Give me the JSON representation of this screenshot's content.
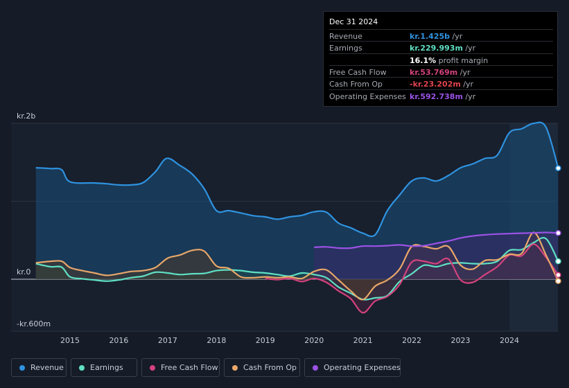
{
  "chart_data": {
    "type": "area",
    "y_axis_labels": [
      "kr.2b",
      "kr.0",
      "-kr.600m"
    ],
    "x_ticks": [
      2015,
      2016,
      2017,
      2018,
      2019,
      2020,
      2021,
      2022,
      2023,
      2024
    ],
    "ylim": [
      -600,
      2000
    ],
    "xlim": [
      2014.3,
      2025.0
    ],
    "forecast_start": 2024.0,
    "series": [
      {
        "name": "Revenue",
        "key": "revenue",
        "color": "#2f93e0",
        "fill": "#1a4f7a",
        "points": [
          [
            2014.3,
            1430
          ],
          [
            2014.6,
            1420
          ],
          [
            2014.83,
            1405
          ],
          [
            2015.0,
            1250
          ],
          [
            2015.5,
            1235
          ],
          [
            2015.75,
            1225
          ],
          [
            2016.0,
            1210
          ],
          [
            2016.25,
            1210
          ],
          [
            2016.5,
            1240
          ],
          [
            2016.75,
            1380
          ],
          [
            2016.98,
            1550
          ],
          [
            2017.25,
            1460
          ],
          [
            2017.5,
            1350
          ],
          [
            2017.75,
            1160
          ],
          [
            2018.0,
            880
          ],
          [
            2018.25,
            880
          ],
          [
            2018.5,
            850
          ],
          [
            2018.75,
            815
          ],
          [
            2019.0,
            800
          ],
          [
            2019.25,
            770
          ],
          [
            2019.5,
            800
          ],
          [
            2019.75,
            820
          ],
          [
            2020.0,
            865
          ],
          [
            2020.25,
            860
          ],
          [
            2020.5,
            720
          ],
          [
            2020.75,
            660
          ],
          [
            2021.0,
            590
          ],
          [
            2021.25,
            570
          ],
          [
            2021.5,
            880
          ],
          [
            2021.75,
            1080
          ],
          [
            2022.0,
            1260
          ],
          [
            2022.25,
            1300
          ],
          [
            2022.5,
            1260
          ],
          [
            2022.75,
            1330
          ],
          [
            2023.0,
            1430
          ],
          [
            2023.25,
            1480
          ],
          [
            2023.5,
            1550
          ],
          [
            2023.75,
            1590
          ],
          [
            2024.0,
            1880
          ],
          [
            2024.25,
            1930
          ],
          [
            2024.5,
            2000
          ],
          [
            2024.75,
            1950
          ],
          [
            2025.0,
            1425
          ]
        ]
      },
      {
        "name": "Earnings",
        "key": "earnings",
        "color": "#5fe0c3",
        "fill": "#1f4a4a",
        "points": [
          [
            2014.3,
            200
          ],
          [
            2014.6,
            160
          ],
          [
            2014.83,
            155
          ],
          [
            2015.0,
            30
          ],
          [
            2015.25,
            5
          ],
          [
            2015.5,
            -10
          ],
          [
            2015.75,
            -25
          ],
          [
            2016.0,
            -10
          ],
          [
            2016.25,
            20
          ],
          [
            2016.5,
            40
          ],
          [
            2016.75,
            90
          ],
          [
            2017.0,
            80
          ],
          [
            2017.25,
            60
          ],
          [
            2017.5,
            70
          ],
          [
            2017.75,
            75
          ],
          [
            2018.0,
            110
          ],
          [
            2018.25,
            120
          ],
          [
            2018.5,
            110
          ],
          [
            2018.75,
            90
          ],
          [
            2019.0,
            80
          ],
          [
            2019.25,
            60
          ],
          [
            2019.5,
            40
          ],
          [
            2019.75,
            80
          ],
          [
            2020.0,
            60
          ],
          [
            2020.25,
            20
          ],
          [
            2020.5,
            -100
          ],
          [
            2020.75,
            -180
          ],
          [
            2021.0,
            -260
          ],
          [
            2021.25,
            -240
          ],
          [
            2021.5,
            -210
          ],
          [
            2021.75,
            -30
          ],
          [
            2022.0,
            70
          ],
          [
            2022.25,
            180
          ],
          [
            2022.5,
            160
          ],
          [
            2022.75,
            200
          ],
          [
            2023.0,
            210
          ],
          [
            2023.25,
            200
          ],
          [
            2023.5,
            200
          ],
          [
            2023.75,
            230
          ],
          [
            2024.0,
            370
          ],
          [
            2024.25,
            380
          ],
          [
            2024.5,
            470
          ],
          [
            2024.75,
            520
          ],
          [
            2025.0,
            230
          ]
        ]
      },
      {
        "name": "Free Cash Flow",
        "key": "fcf",
        "color": "#d4437d",
        "fill": "#4a2340",
        "points": [
          [
            2019.0,
            10
          ],
          [
            2019.25,
            -5
          ],
          [
            2019.5,
            10
          ],
          [
            2019.75,
            -30
          ],
          [
            2020.0,
            10
          ],
          [
            2020.25,
            -40
          ],
          [
            2020.5,
            -150
          ],
          [
            2020.75,
            -250
          ],
          [
            2021.0,
            -430
          ],
          [
            2021.25,
            -280
          ],
          [
            2021.5,
            -220
          ],
          [
            2021.75,
            -70
          ],
          [
            2022.0,
            220
          ],
          [
            2022.25,
            230
          ],
          [
            2022.5,
            200
          ],
          [
            2022.75,
            260
          ],
          [
            2023.0,
            -10
          ],
          [
            2023.25,
            -40
          ],
          [
            2023.5,
            60
          ],
          [
            2023.75,
            160
          ],
          [
            2024.0,
            310
          ],
          [
            2024.25,
            300
          ],
          [
            2024.5,
            450
          ],
          [
            2024.75,
            280
          ],
          [
            2025.0,
            54
          ]
        ]
      },
      {
        "name": "Cash From Op",
        "key": "cfo",
        "color": "#e9a76a",
        "fill": "#4a3a2a",
        "points": [
          [
            2014.3,
            210
          ],
          [
            2014.6,
            230
          ],
          [
            2014.83,
            230
          ],
          [
            2015.0,
            150
          ],
          [
            2015.25,
            110
          ],
          [
            2015.5,
            80
          ],
          [
            2015.75,
            50
          ],
          [
            2016.0,
            70
          ],
          [
            2016.25,
            100
          ],
          [
            2016.5,
            110
          ],
          [
            2016.75,
            150
          ],
          [
            2017.0,
            270
          ],
          [
            2017.25,
            310
          ],
          [
            2017.5,
            370
          ],
          [
            2017.75,
            360
          ],
          [
            2018.0,
            170
          ],
          [
            2018.25,
            140
          ],
          [
            2018.5,
            30
          ],
          [
            2018.75,
            20
          ],
          [
            2019.0,
            30
          ],
          [
            2019.25,
            20
          ],
          [
            2019.5,
            30
          ],
          [
            2019.75,
            10
          ],
          [
            2020.0,
            100
          ],
          [
            2020.25,
            120
          ],
          [
            2020.5,
            -10
          ],
          [
            2020.75,
            -150
          ],
          [
            2021.0,
            -260
          ],
          [
            2021.25,
            -90
          ],
          [
            2021.5,
            -10
          ],
          [
            2021.75,
            130
          ],
          [
            2022.0,
            420
          ],
          [
            2022.25,
            420
          ],
          [
            2022.5,
            390
          ],
          [
            2022.75,
            420
          ],
          [
            2023.0,
            180
          ],
          [
            2023.25,
            130
          ],
          [
            2023.5,
            240
          ],
          [
            2023.75,
            250
          ],
          [
            2024.0,
            320
          ],
          [
            2024.25,
            330
          ],
          [
            2024.5,
            600
          ],
          [
            2024.75,
            310
          ],
          [
            2025.0,
            -23
          ]
        ]
      },
      {
        "name": "Operating Expenses",
        "key": "opex",
        "color": "#9b52e6",
        "fill": "#3a2a6a",
        "points": [
          [
            2020.0,
            410
          ],
          [
            2020.25,
            415
          ],
          [
            2020.5,
            400
          ],
          [
            2020.75,
            400
          ],
          [
            2021.0,
            425
          ],
          [
            2021.25,
            425
          ],
          [
            2021.5,
            430
          ],
          [
            2021.75,
            440
          ],
          [
            2022.0,
            425
          ],
          [
            2022.25,
            430
          ],
          [
            2022.5,
            460
          ],
          [
            2022.75,
            490
          ],
          [
            2023.0,
            530
          ],
          [
            2023.25,
            555
          ],
          [
            2023.5,
            570
          ],
          [
            2023.75,
            580
          ],
          [
            2024.0,
            585
          ],
          [
            2024.25,
            590
          ],
          [
            2024.5,
            595
          ],
          [
            2024.75,
            600
          ],
          [
            2025.0,
            593
          ]
        ]
      }
    ]
  },
  "tooltip": {
    "date": "Dec 31 2024",
    "rows": [
      {
        "label": "Revenue",
        "value": "kr.1.425b",
        "unit": "/yr",
        "color": "#2f93e0"
      },
      {
        "label": "Earnings",
        "value": "kr.229.993m",
        "unit": "/yr",
        "color": "#5fe0c3"
      },
      {
        "label": "",
        "value": "16.1%",
        "unit": "profit margin",
        "color": "#ffffff"
      },
      {
        "label": "Free Cash Flow",
        "value": "kr.53.769m",
        "unit": "/yr",
        "color": "#d4437d"
      },
      {
        "label": "Cash From Op",
        "value": "-kr.23.202m",
        "unit": "/yr",
        "color": "#e0434d"
      },
      {
        "label": "Operating Expenses",
        "value": "kr.592.738m",
        "unit": "/yr",
        "color": "#9b52e6"
      }
    ]
  },
  "legend": [
    {
      "label": "Revenue",
      "color": "#2f93e0"
    },
    {
      "label": "Earnings",
      "color": "#5fe0c3"
    },
    {
      "label": "Free Cash Flow",
      "color": "#d4437d"
    },
    {
      "label": "Cash From Op",
      "color": "#e9a76a"
    },
    {
      "label": "Operating Expenses",
      "color": "#9b52e6"
    }
  ]
}
